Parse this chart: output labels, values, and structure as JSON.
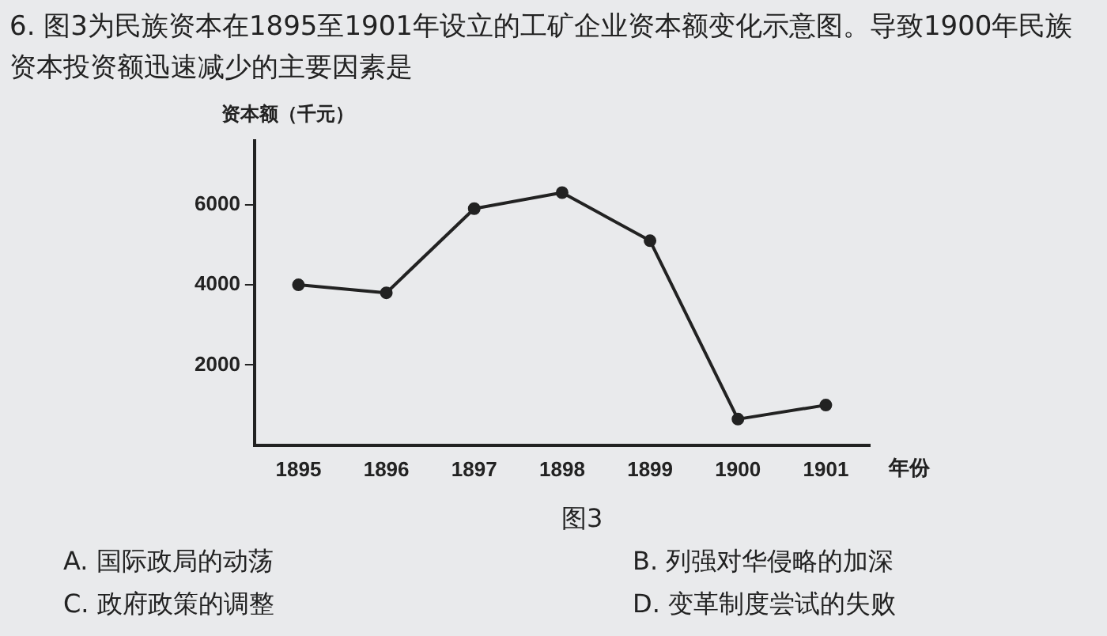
{
  "chart_data": {
    "type": "line",
    "title": "6. 图3为民族资本在1895至1901年设立的工矿企业资本额变化示意图。导致1900年民族资本投资额迅速减少的主要因素是",
    "ylabel": "资本额（千元）",
    "xlabel": "年份",
    "categories": [
      "1895",
      "1896",
      "1897",
      "1898",
      "1899",
      "1900",
      "1901"
    ],
    "series": [
      {
        "color": "#222222",
        "values": [
          4000,
          3800,
          5900,
          6300,
          5100,
          650,
          1000
        ]
      }
    ],
    "ylim": [
      0,
      7600
    ],
    "yticks": [
      2000,
      4000,
      6000
    ],
    "grid": false,
    "legend": false,
    "marker": "circle",
    "line_style": "solid",
    "annotations": [
      "图3",
      "A. 国际政局的动荡",
      "B. 列强对华侵略的加深",
      "C. 政府政策的调整",
      "D. 变革制度尝试的失败"
    ]
  }
}
